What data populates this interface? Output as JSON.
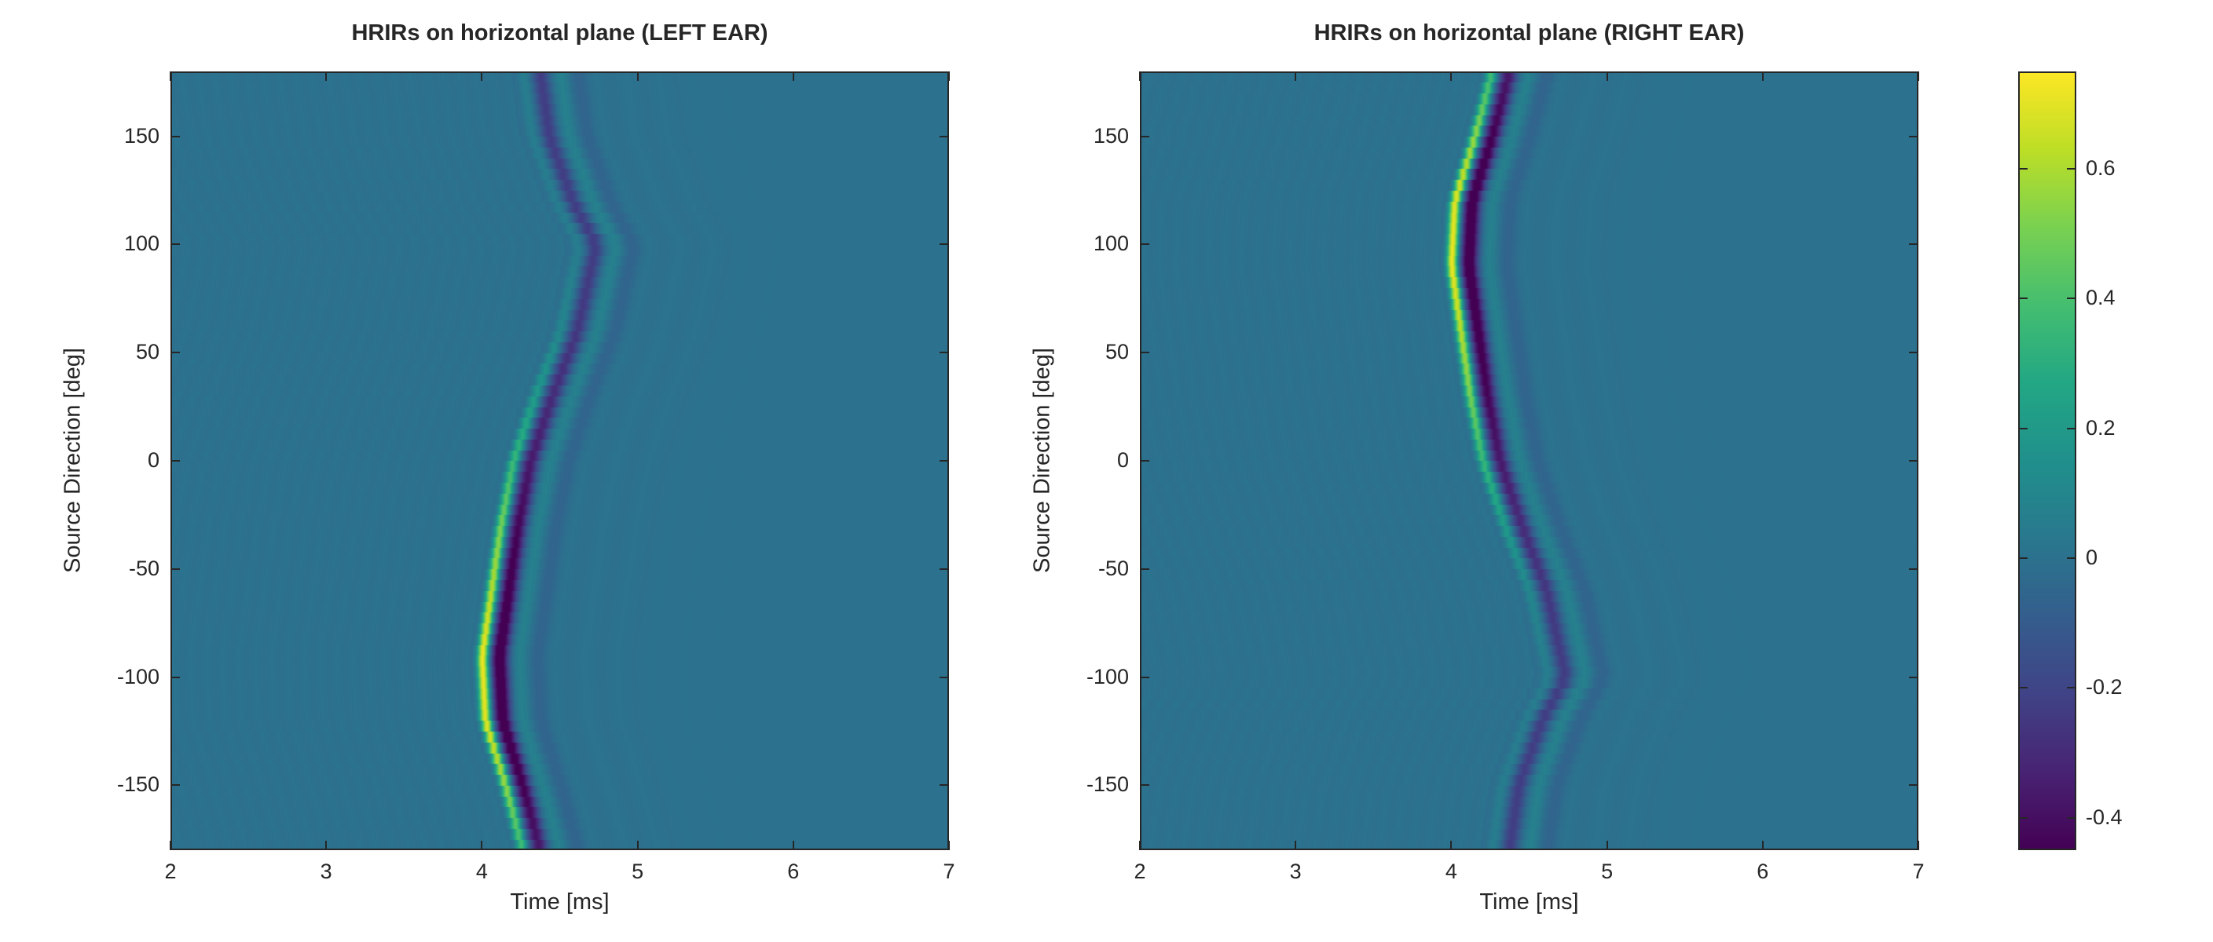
{
  "chart_data": [
    {
      "type": "heatmap",
      "title": "HRIRs on horizontal plane (LEFT EAR)",
      "xlabel": "Time [ms]",
      "ylabel": "Source Direction [deg]",
      "xlim": [
        2,
        7
      ],
      "ylim": [
        -180,
        180
      ],
      "xticks": [
        2,
        3,
        4,
        5,
        6,
        7
      ],
      "xtick_labels": [
        "2",
        "3",
        "4",
        "5",
        "6",
        "7"
      ],
      "yticks": [
        150,
        100,
        50,
        0,
        -50,
        -100,
        -150
      ],
      "ytick_labels": [
        "150",
        "100",
        "50",
        "0",
        "-50",
        "-100",
        "-150"
      ],
      "colormap": "viridis",
      "clim": [
        -0.45,
        0.75
      ],
      "ridge": [
        {
          "direction": 180,
          "onset_ms": 4.24,
          "peak": 0.05
        },
        {
          "direction": 150,
          "onset_ms": 4.3,
          "peak": 0.05
        },
        {
          "direction": 120,
          "onset_ms": 4.45,
          "peak": 0.05
        },
        {
          "direction": 100,
          "onset_ms": 4.6,
          "peak": 0.05
        },
        {
          "direction": 60,
          "onset_ms": 4.48,
          "peak": 0.1
        },
        {
          "direction": 30,
          "onset_ms": 4.32,
          "peak": 0.2
        },
        {
          "direction": 0,
          "onset_ms": 4.18,
          "peak": 0.35
        },
        {
          "direction": -30,
          "onset_ms": 4.1,
          "peak": 0.5
        },
        {
          "direction": -60,
          "onset_ms": 4.04,
          "peak": 0.62
        },
        {
          "direction": -90,
          "onset_ms": 3.98,
          "peak": 0.72
        },
        {
          "direction": -120,
          "onset_ms": 4.0,
          "peak": 0.7
        },
        {
          "direction": -150,
          "onset_ms": 4.13,
          "peak": 0.55
        },
        {
          "direction": -180,
          "onset_ms": 4.24,
          "peak": 0.35
        }
      ]
    },
    {
      "type": "heatmap",
      "title": "HRIRs on horizontal plane (RIGHT EAR)",
      "xlabel": "Time [ms]",
      "ylabel": "Source Direction [deg]",
      "xlim": [
        2,
        7
      ],
      "ylim": [
        -180,
        180
      ],
      "xticks": [
        2,
        3,
        4,
        5,
        6,
        7
      ],
      "xtick_labels": [
        "2",
        "3",
        "4",
        "5",
        "6",
        "7"
      ],
      "yticks": [
        150,
        100,
        50,
        0,
        -50,
        -100,
        -150
      ],
      "ytick_labels": [
        "150",
        "100",
        "50",
        "0",
        "-50",
        "-100",
        "-150"
      ],
      "colormap": "viridis",
      "clim": [
        -0.45,
        0.75
      ],
      "ridge": [
        {
          "direction": 180,
          "onset_ms": 4.24,
          "peak": 0.35
        },
        {
          "direction": 150,
          "onset_ms": 4.13,
          "peak": 0.55
        },
        {
          "direction": 120,
          "onset_ms": 4.0,
          "peak": 0.7
        },
        {
          "direction": 90,
          "onset_ms": 3.98,
          "peak": 0.72
        },
        {
          "direction": 60,
          "onset_ms": 4.04,
          "peak": 0.62
        },
        {
          "direction": 30,
          "onset_ms": 4.1,
          "peak": 0.5
        },
        {
          "direction": 0,
          "onset_ms": 4.18,
          "peak": 0.35
        },
        {
          "direction": -30,
          "onset_ms": 4.32,
          "peak": 0.2
        },
        {
          "direction": -60,
          "onset_ms": 4.48,
          "peak": 0.1
        },
        {
          "direction": -100,
          "onset_ms": 4.6,
          "peak": 0.05
        },
        {
          "direction": -120,
          "onset_ms": 4.45,
          "peak": 0.05
        },
        {
          "direction": -150,
          "onset_ms": 4.3,
          "peak": 0.05
        },
        {
          "direction": -180,
          "onset_ms": 4.24,
          "peak": 0.05
        }
      ]
    }
  ],
  "colorbar": {
    "colormap": "viridis",
    "range": [
      -0.45,
      0.75
    ],
    "ticks": [
      0.6,
      0.4,
      0.2,
      0,
      -0.2,
      -0.4
    ],
    "tick_labels": [
      "0.6",
      "0.4",
      "0.2",
      "0",
      "-0.2",
      "-0.4"
    ]
  }
}
